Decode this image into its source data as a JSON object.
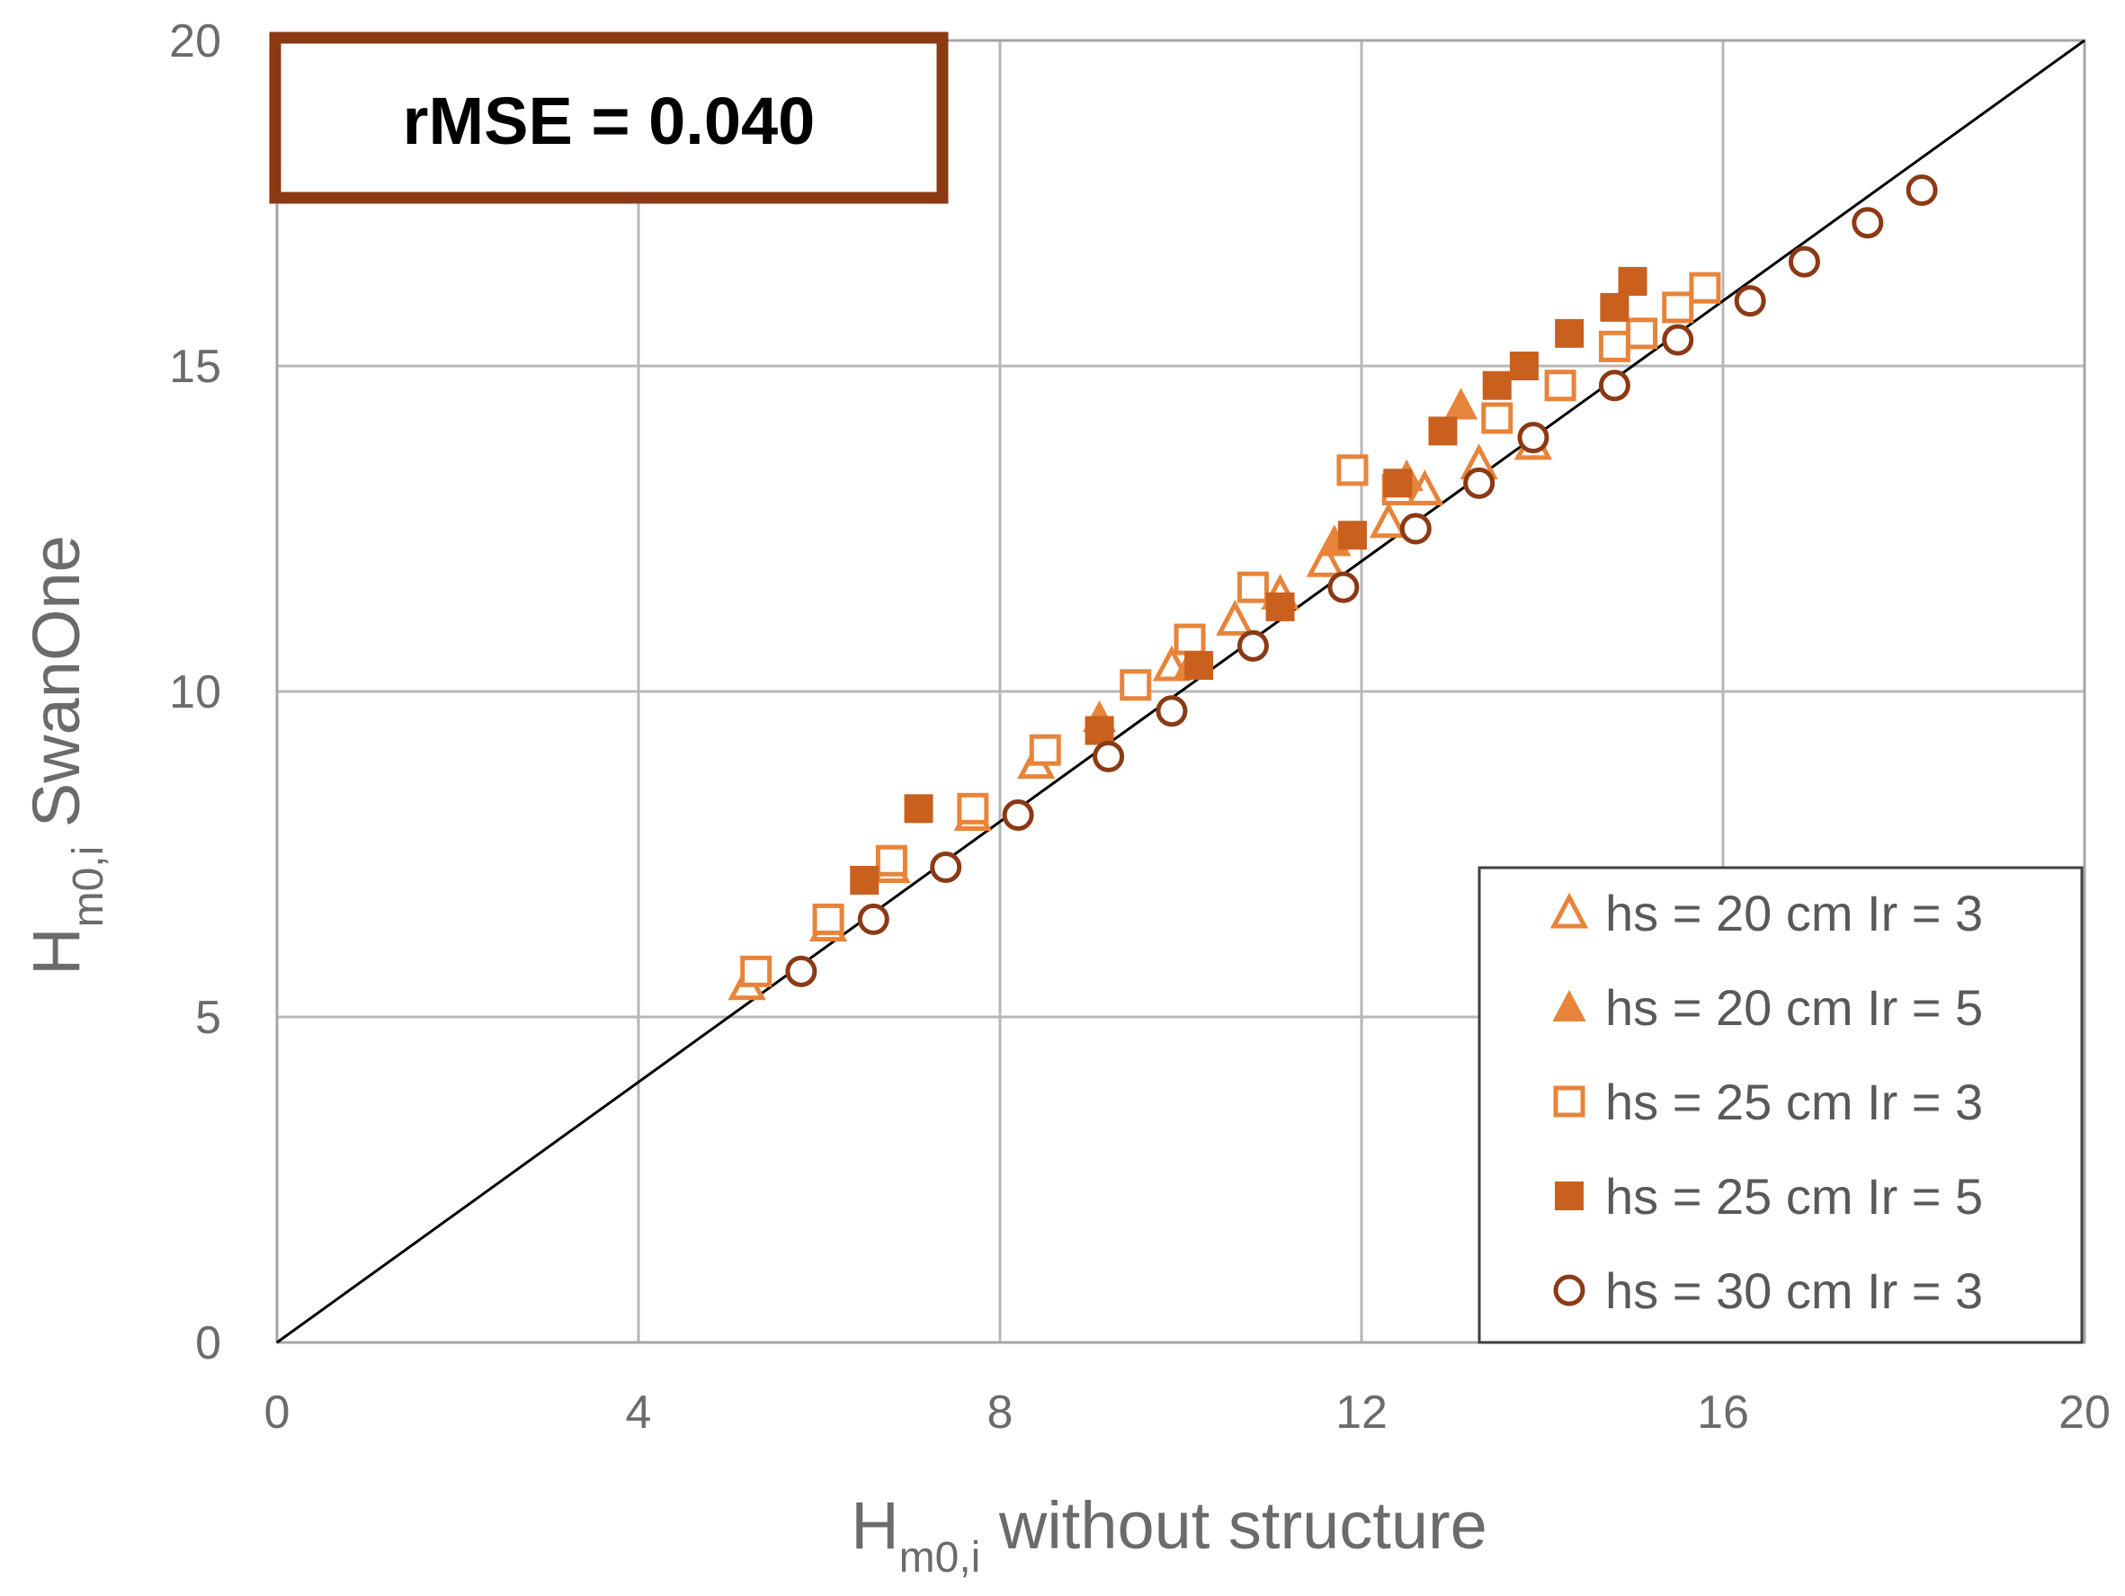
{
  "chart_data": {
    "type": "scatter",
    "title": "",
    "annotation": "rMSE = 0.040",
    "xlabel": {
      "main": "H",
      "sub": "m0,i",
      "rest": " without structure"
    },
    "ylabel": {
      "main": "H",
      "sub": "m0,i",
      "rest": " SwanOne"
    },
    "xlim": [
      0,
      20
    ],
    "ylim": [
      0,
      20
    ],
    "xticks": [
      "0",
      "4",
      "8",
      "12",
      "16",
      "20"
    ],
    "yticks": [
      "0",
      "5",
      "10",
      "15",
      "20"
    ],
    "grid": true,
    "reference_line": {
      "x": [
        0,
        20
      ],
      "y": [
        0,
        20
      ],
      "color": "#000000"
    },
    "legend_position": "bottom-right",
    "colors": {
      "light_orange": "#E8843A",
      "dark_orange": "#C9601E",
      "brown": "#8B3A14",
      "annotation_border": "#8B3A14",
      "grid": "#b7b7b7"
    },
    "series": [
      {
        "name": "hs = 20 cm Ir = 3",
        "marker": "triangle-open",
        "color": "#E8843A",
        "x": [
          5.2,
          6.1,
          6.8,
          7.7,
          8.4,
          9.9,
          10.6,
          11.1,
          11.6,
          12.3,
          12.7,
          13.3,
          13.9
        ],
        "y": [
          5.5,
          6.4,
          7.3,
          8.1,
          8.9,
          10.4,
          11.1,
          11.5,
          12.0,
          12.6,
          13.1,
          13.5,
          13.8
        ]
      },
      {
        "name": "hs = 20 cm Ir = 5",
        "marker": "triangle-filled",
        "color": "#E8843A",
        "x": [
          9.1,
          10.1,
          11.7,
          12.5,
          13.1
        ],
        "y": [
          9.6,
          10.4,
          12.3,
          13.3,
          14.4
        ]
      },
      {
        "name": "hs = 25 cm Ir = 3",
        "marker": "square-open",
        "color": "#E8843A",
        "x": [
          5.3,
          6.1,
          6.8,
          7.7,
          8.5,
          9.5,
          10.1,
          10.8,
          11.9,
          12.4,
          13.5,
          14.2,
          14.8,
          15.1,
          15.5,
          15.8
        ],
        "y": [
          5.7,
          6.5,
          7.4,
          8.2,
          9.1,
          10.1,
          10.8,
          11.6,
          13.4,
          13.1,
          14.2,
          14.7,
          15.3,
          15.5,
          15.9,
          16.2
        ]
      },
      {
        "name": "hs = 25 cm Ir = 5",
        "marker": "square-filled",
        "color": "#C9601E",
        "x": [
          6.5,
          7.1,
          9.1,
          10.2,
          11.1,
          11.9,
          12.4,
          12.9,
          13.5,
          13.8,
          14.3,
          14.8,
          15.0
        ],
        "y": [
          7.1,
          8.2,
          9.4,
          10.4,
          11.3,
          12.4,
          13.2,
          14.0,
          14.7,
          15.0,
          15.5,
          15.9,
          16.3
        ]
      },
      {
        "name": "hs = 30 cm Ir = 3",
        "marker": "circle-open",
        "color": "#8B3A14",
        "x": [
          5.8,
          6.6,
          7.4,
          8.2,
          9.2,
          9.9,
          10.8,
          11.8,
          12.6,
          13.3,
          13.9,
          14.8,
          15.5,
          16.3,
          16.9,
          17.6,
          18.2
        ],
        "y": [
          5.7,
          6.5,
          7.3,
          8.1,
          9.0,
          9.7,
          10.7,
          11.6,
          12.5,
          13.2,
          13.9,
          14.7,
          15.4,
          16.0,
          16.6,
          17.2,
          17.7
        ]
      }
    ]
  }
}
